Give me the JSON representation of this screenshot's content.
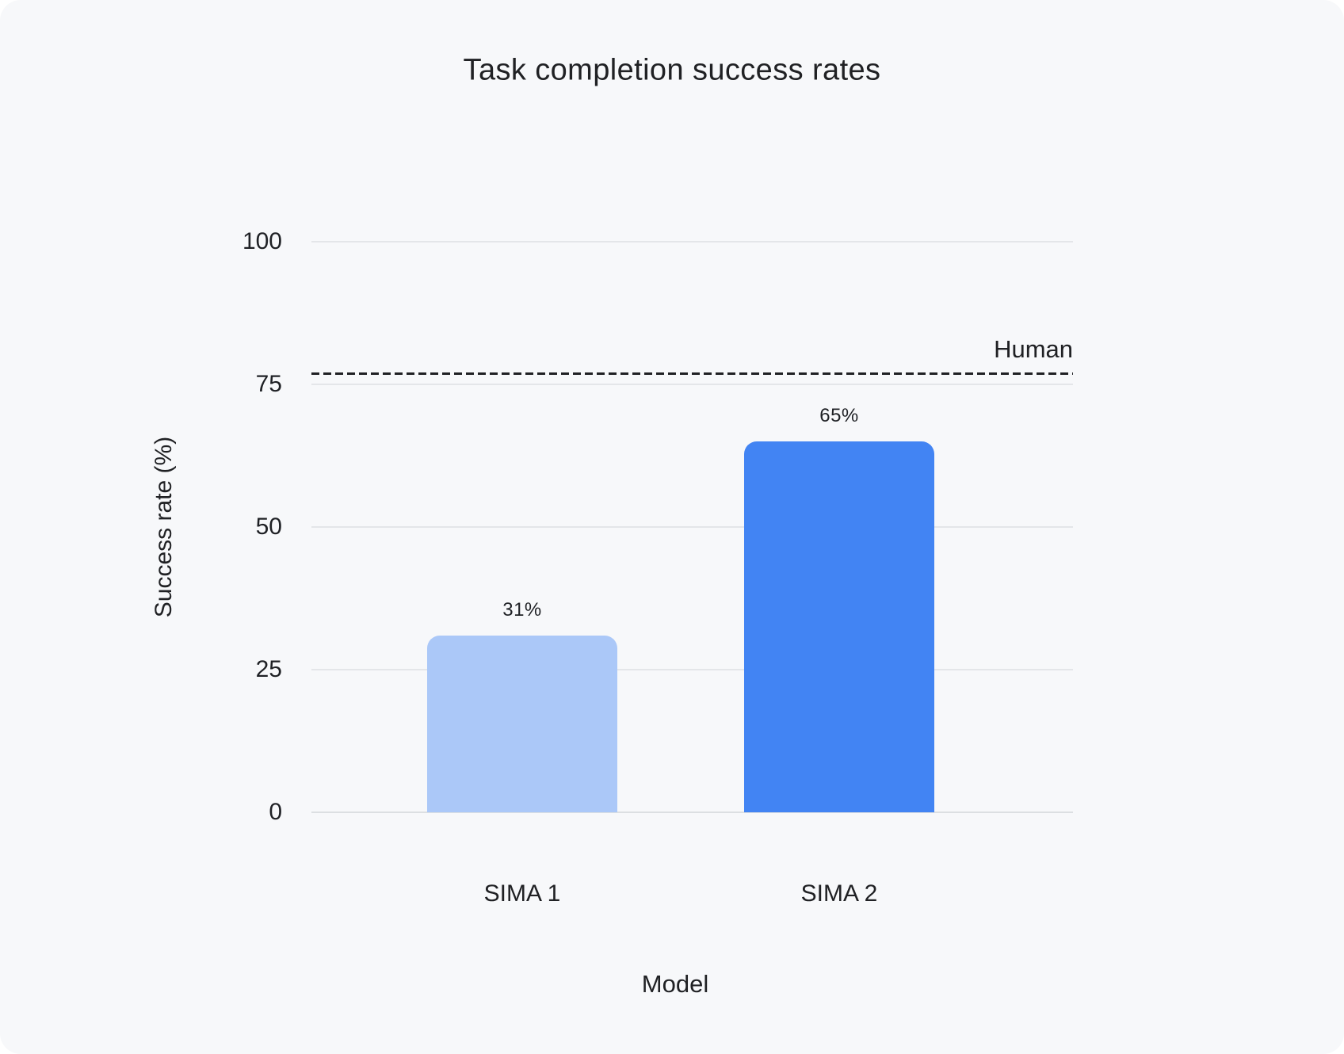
{
  "page": {
    "surface_color": "#f7f8fa",
    "outer_color": "#ffffff",
    "text_color": "#202124",
    "gridline_color": "#e4e6e9",
    "baseline_color": "#dcdfe2"
  },
  "chart_data": {
    "type": "bar",
    "title": "Task completion success rates",
    "xlabel": "Model",
    "ylabel": "Success rate (%)",
    "categories": [
      "SIMA 1",
      "SIMA 2"
    ],
    "values": [
      31,
      65
    ],
    "value_labels": [
      "31%",
      "65%"
    ],
    "bar_colors": [
      "#abc8f8",
      "#4284f3"
    ],
    "ylim": [
      0,
      100
    ],
    "yticks": [
      0,
      25,
      50,
      75,
      100
    ],
    "grid": "horizontal-only",
    "legend_position": "none",
    "reference_line": {
      "label": "Human",
      "value": 77,
      "style": "dashed",
      "color": "#202124"
    }
  }
}
